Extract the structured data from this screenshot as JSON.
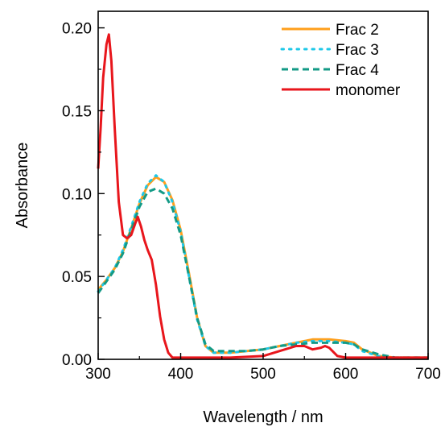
{
  "chart_data": {
    "type": "line",
    "title": "",
    "xlabel": "Wavelength / nm",
    "ylabel": "Absorbance",
    "xlim": [
      300,
      700
    ],
    "ylim": [
      0.0,
      0.21
    ],
    "x_ticks": [
      "300",
      "400",
      "500",
      "600",
      "700"
    ],
    "y_ticks": [
      "0.00",
      "0.05",
      "0.10",
      "0.15",
      "0.20"
    ],
    "legend_position": "top-right",
    "grid": false,
    "series": [
      {
        "name": "Frac 2",
        "color": "#ff9f1c",
        "style": "solid",
        "x": [
          300,
          310,
          320,
          330,
          340,
          350,
          360,
          370,
          380,
          390,
          400,
          410,
          420,
          430,
          440,
          450,
          460,
          480,
          500,
          520,
          540,
          560,
          570,
          580,
          600,
          610,
          620,
          640,
          660,
          680,
          700
        ],
        "y": [
          0.042,
          0.048,
          0.055,
          0.065,
          0.079,
          0.094,
          0.105,
          0.11,
          0.107,
          0.096,
          0.078,
          0.052,
          0.025,
          0.008,
          0.004,
          0.004,
          0.004,
          0.005,
          0.006,
          0.008,
          0.01,
          0.012,
          0.012,
          0.012,
          0.011,
          0.01,
          0.006,
          0.002,
          0.001,
          0.001,
          0.001
        ]
      },
      {
        "name": "Frac 3",
        "color": "#1ec8e8",
        "style": "dotted",
        "x": [
          300,
          310,
          320,
          330,
          340,
          350,
          360,
          370,
          380,
          390,
          400,
          410,
          420,
          430,
          440,
          450,
          460,
          480,
          500,
          520,
          540,
          560,
          570,
          580,
          600,
          610,
          620,
          640,
          660,
          680,
          700
        ],
        "y": [
          0.041,
          0.048,
          0.055,
          0.066,
          0.08,
          0.095,
          0.106,
          0.111,
          0.107,
          0.095,
          0.077,
          0.05,
          0.024,
          0.008,
          0.004,
          0.004,
          0.004,
          0.005,
          0.006,
          0.008,
          0.01,
          0.011,
          0.011,
          0.011,
          0.01,
          0.009,
          0.005,
          0.002,
          0.001,
          0.001,
          0.001
        ]
      },
      {
        "name": "Frac 4",
        "color": "#139a86",
        "style": "dashed",
        "x": [
          300,
          310,
          320,
          330,
          340,
          350,
          360,
          370,
          380,
          390,
          400,
          410,
          420,
          430,
          440,
          450,
          460,
          480,
          500,
          520,
          540,
          560,
          570,
          580,
          600,
          610,
          620,
          640,
          660,
          680,
          700
        ],
        "y": [
          0.04,
          0.047,
          0.054,
          0.064,
          0.078,
          0.092,
          0.101,
          0.103,
          0.1,
          0.091,
          0.075,
          0.05,
          0.025,
          0.009,
          0.005,
          0.005,
          0.005,
          0.005,
          0.006,
          0.008,
          0.009,
          0.01,
          0.01,
          0.01,
          0.01,
          0.009,
          0.006,
          0.003,
          0.001,
          0.001,
          0.001
        ]
      },
      {
        "name": "monomer",
        "color": "#e8161c",
        "style": "solid",
        "x": [
          300,
          303,
          306,
          310,
          313,
          316,
          320,
          325,
          330,
          335,
          340,
          345,
          348,
          352,
          356,
          360,
          365,
          370,
          375,
          380,
          385,
          390,
          400,
          420,
          460,
          500,
          520,
          540,
          550,
          560,
          570,
          575,
          580,
          590,
          600,
          620,
          700
        ],
        "y": [
          0.115,
          0.14,
          0.17,
          0.19,
          0.196,
          0.18,
          0.14,
          0.095,
          0.075,
          0.073,
          0.075,
          0.082,
          0.086,
          0.08,
          0.072,
          0.066,
          0.06,
          0.045,
          0.026,
          0.012,
          0.004,
          0.001,
          0.001,
          0.001,
          0.001,
          0.002,
          0.005,
          0.008,
          0.008,
          0.006,
          0.007,
          0.008,
          0.007,
          0.002,
          0.001,
          0.001,
          0.001
        ]
      }
    ]
  }
}
